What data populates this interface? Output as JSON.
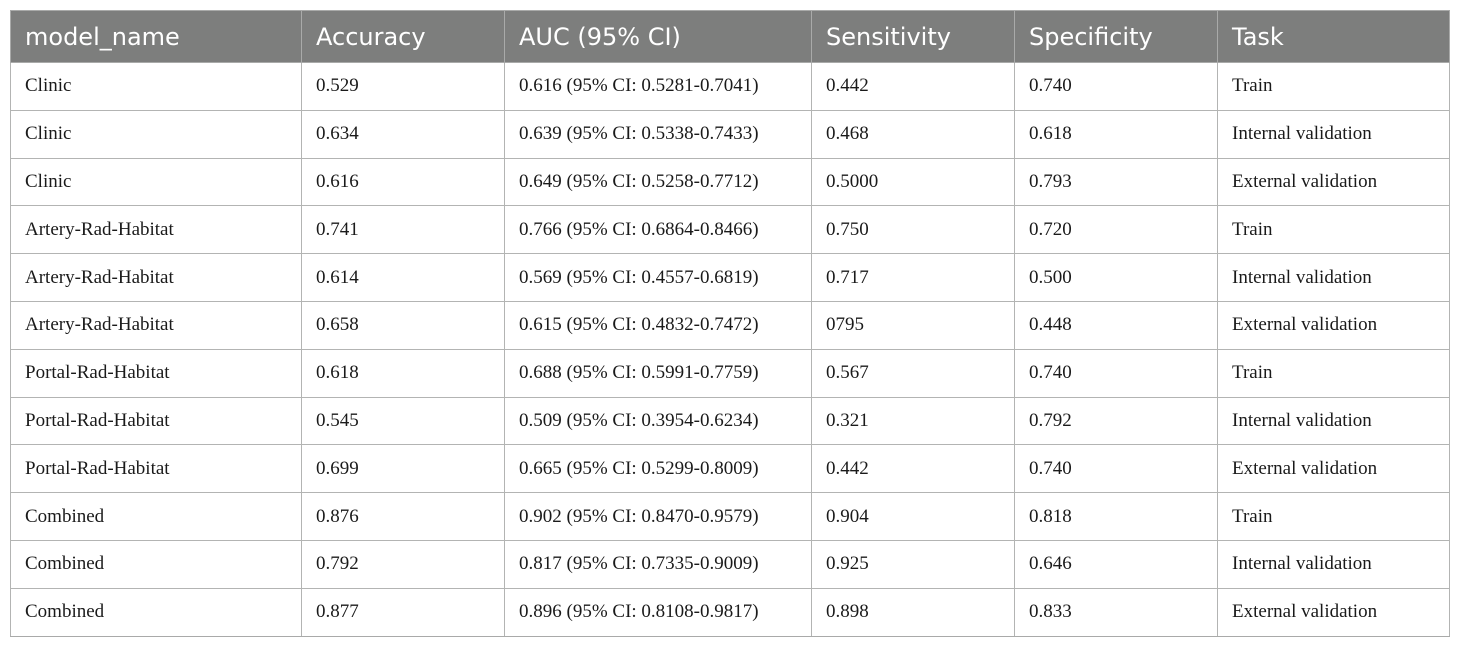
{
  "table": {
    "headers": [
      "model_name",
      "Accuracy",
      "AUC (95% CI)",
      "Sensitivity",
      "Specificity",
      "Task"
    ],
    "rows": [
      [
        "Clinic",
        "0.529",
        "0.616 (95% CI: 0.5281-0.7041)",
        "0.442",
        "0.740",
        "Train"
      ],
      [
        "Clinic",
        "0.634",
        "0.639 (95% CI: 0.5338-0.7433)",
        "0.468",
        "0.618",
        "Internal validation"
      ],
      [
        "Clinic",
        "0.616",
        "0.649 (95% CI: 0.5258-0.7712)",
        "0.5000",
        "0.793",
        "External validation"
      ],
      [
        "Artery-Rad-Habitat",
        "0.741",
        "0.766 (95% CI: 0.6864-0.8466)",
        "0.750",
        "0.720",
        "Train"
      ],
      [
        "Artery-Rad-Habitat",
        "0.614",
        "0.569 (95% CI: 0.4557-0.6819)",
        "0.717",
        "0.500",
        "Internal validation"
      ],
      [
        "Artery-Rad-Habitat",
        "0.658",
        "0.615 (95% CI: 0.4832-0.7472)",
        "0795",
        "0.448",
        "External validation"
      ],
      [
        "Portal-Rad-Habitat",
        "0.618",
        "0.688 (95% CI: 0.5991-0.7759)",
        "0.567",
        "0.740",
        "Train"
      ],
      [
        "Portal-Rad-Habitat",
        "0.545",
        "0.509 (95% CI: 0.3954-0.6234)",
        "0.321",
        "0.792",
        "Internal validation"
      ],
      [
        "Portal-Rad-Habitat",
        "0.699",
        "0.665 (95% CI: 0.5299-0.8009)",
        "0.442",
        "0.740",
        "External validation"
      ],
      [
        "Combined",
        "0.876",
        "0.902 (95% CI: 0.8470-0.9579)",
        "0.904",
        "0.818",
        "Train"
      ],
      [
        "Combined",
        "0.792",
        "0.817 (95% CI: 0.7335-0.9009)",
        "0.925",
        "0.646",
        "Internal validation"
      ],
      [
        "Combined",
        "0.877",
        "0.896 (95% CI: 0.8108-0.9817)",
        "0.898",
        "0.833",
        "External validation"
      ]
    ]
  },
  "colors": {
    "header_bg": "#7d7e7d",
    "header_text": "#ffffff",
    "grid": "#b3b4b3"
  }
}
